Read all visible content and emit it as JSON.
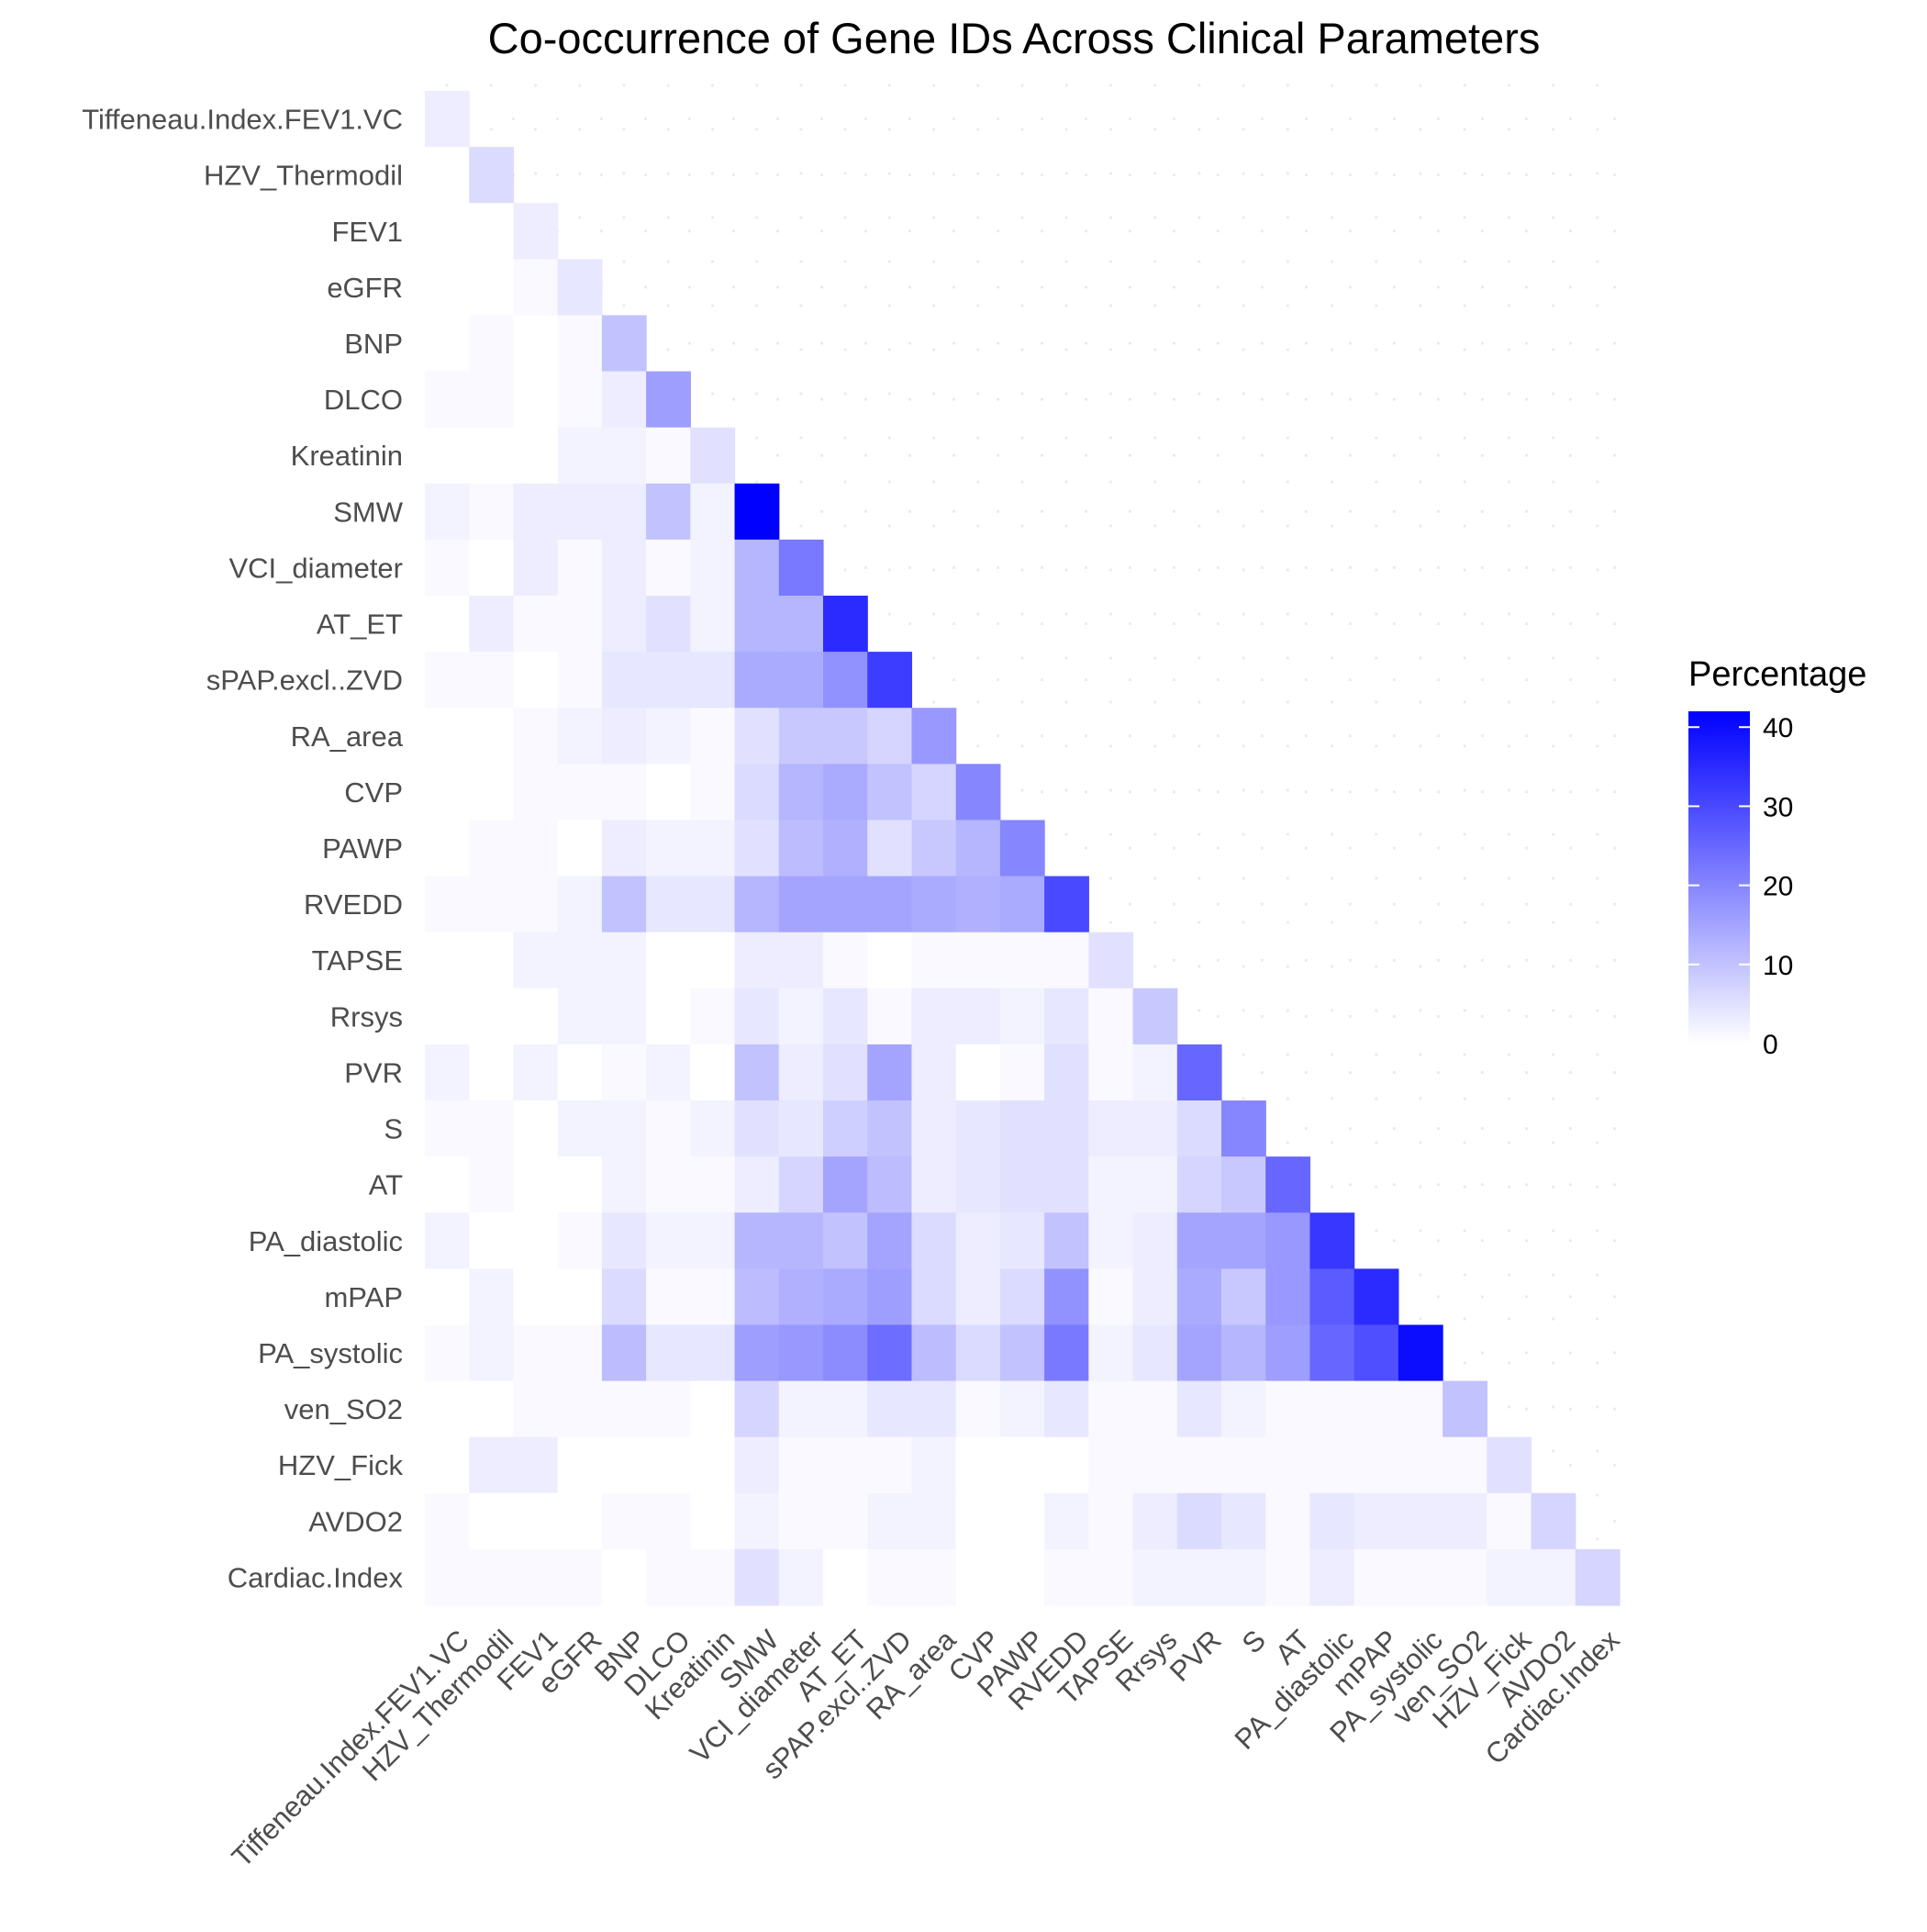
{
  "chart_data": {
    "type": "heatmap",
    "title": "Co-occurrence of Gene IDs Across Clinical Parameters",
    "xlabel": "",
    "ylabel": "",
    "categories": [
      "Tiffeneau.Index.FEV1.VC",
      "HZV_Thermodil",
      "FEV1",
      "eGFR",
      "BNP",
      "DLCO",
      "Kreatinin",
      "SMW",
      "VCI_diameter",
      "AT_ET",
      "sPAP.excl..ZVD",
      "RA_area",
      "CVP",
      "PAWP",
      "RVEDD",
      "TAPSE",
      "Rrsys",
      "PVR",
      "S",
      "AT",
      "PA_diastolic",
      "mPAP",
      "PA_systolic",
      "ven_SO2",
      "HZV_Fick",
      "AVDO2",
      "Cardiac.Index"
    ],
    "matrix": [
      [
        3
      ],
      [
        0,
        6
      ],
      [
        0,
        0,
        3
      ],
      [
        0,
        0,
        1,
        4
      ],
      [
        0,
        1,
        0,
        1,
        10
      ],
      [
        1,
        1,
        0,
        1,
        3,
        16
      ],
      [
        0,
        0,
        0,
        2,
        2,
        1,
        5
      ],
      [
        2,
        1,
        3,
        3,
        3,
        10,
        2,
        42
      ],
      [
        1,
        0,
        3,
        1,
        3,
        1,
        2,
        12,
        22
      ],
      [
        0,
        3,
        1,
        1,
        3,
        5,
        2,
        12,
        12,
        35
      ],
      [
        1,
        1,
        0,
        1,
        4,
        4,
        4,
        14,
        14,
        18,
        32
      ],
      [
        0,
        0,
        1,
        2,
        3,
        2,
        1,
        5,
        9,
        9,
        7,
        17
      ],
      [
        0,
        0,
        1,
        1,
        1,
        0,
        1,
        6,
        12,
        14,
        10,
        7,
        20
      ],
      [
        0,
        1,
        1,
        0,
        3,
        2,
        2,
        5,
        11,
        13,
        5,
        9,
        12,
        20
      ],
      [
        1,
        1,
        1,
        2,
        10,
        4,
        4,
        12,
        15,
        15,
        15,
        14,
        13,
        14,
        30
      ],
      [
        0,
        0,
        2,
        2,
        2,
        0,
        0,
        3,
        3,
        1,
        0,
        1,
        1,
        1,
        1,
        5
      ],
      [
        0,
        0,
        0,
        2,
        2,
        0,
        1,
        4,
        2,
        4,
        1,
        3,
        3,
        2,
        4,
        1,
        9
      ],
      [
        2,
        0,
        2,
        0,
        1,
        2,
        0,
        10,
        3,
        5,
        15,
        3,
        0,
        1,
        5,
        1,
        2,
        25
      ],
      [
        1,
        1,
        0,
        2,
        2,
        1,
        2,
        5,
        4,
        8,
        10,
        3,
        4,
        5,
        5,
        3,
        3,
        6,
        20
      ],
      [
        0,
        1,
        0,
        0,
        2,
        1,
        1,
        3,
        7,
        15,
        11,
        3,
        4,
        5,
        5,
        2,
        2,
        7,
        9,
        25
      ],
      [
        2,
        0,
        0,
        1,
        4,
        2,
        2,
        12,
        12,
        10,
        15,
        6,
        3,
        4,
        10,
        2,
        3,
        15,
        15,
        17,
        33
      ],
      [
        0,
        2,
        0,
        0,
        6,
        1,
        1,
        11,
        13,
        14,
        16,
        6,
        3,
        6,
        18,
        1,
        3,
        14,
        9,
        17,
        27,
        35
      ],
      [
        1,
        2,
        1,
        1,
        11,
        4,
        4,
        16,
        17,
        19,
        24,
        11,
        6,
        10,
        22,
        2,
        4,
        15,
        12,
        16,
        25,
        29,
        40
      ],
      [
        0,
        0,
        1,
        1,
        1,
        1,
        0,
        7,
        2,
        2,
        4,
        4,
        1,
        2,
        4,
        1,
        1,
        4,
        2,
        1,
        1,
        1,
        1,
        10
      ],
      [
        0,
        3,
        3,
        0,
        0,
        0,
        0,
        3,
        1,
        1,
        1,
        2,
        0,
        0,
        0,
        1,
        1,
        1,
        1,
        1,
        1,
        1,
        1,
        1,
        5
      ],
      [
        1,
        0,
        0,
        0,
        1,
        1,
        0,
        2,
        1,
        1,
        2,
        2,
        0,
        0,
        2,
        1,
        3,
        6,
        4,
        1,
        4,
        3,
        3,
        3,
        1,
        7
      ],
      [
        1,
        1,
        1,
        1,
        0,
        1,
        1,
        5,
        2,
        0,
        1,
        1,
        0,
        0,
        1,
        1,
        2,
        2,
        2,
        1,
        3,
        1,
        1,
        1,
        2,
        2,
        7
      ]
    ],
    "value_range": [
      0,
      42
    ],
    "color_low": "#ffffff",
    "color_high": "#0000ff",
    "legend": {
      "title": "Percentage",
      "ticks": [
        0,
        10,
        20,
        30,
        40
      ],
      "placement": "right"
    },
    "grid": false
  }
}
